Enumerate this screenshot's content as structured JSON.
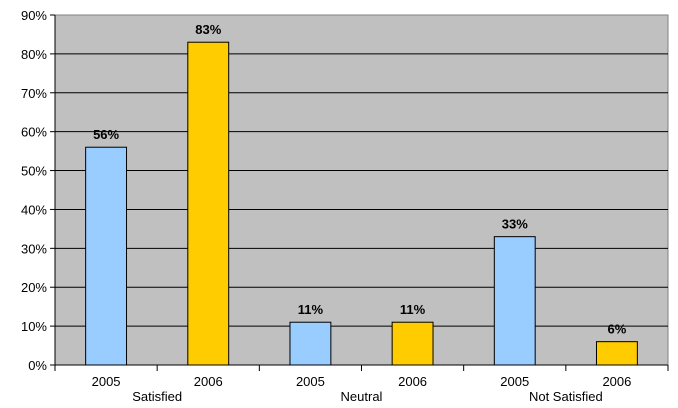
{
  "chart_data": {
    "type": "bar",
    "title": "",
    "xlabel": "",
    "ylabel": "",
    "ylim": [
      0,
      90
    ],
    "yticks": [
      "0%",
      "10%",
      "20%",
      "30%",
      "40%",
      "50%",
      "60%",
      "70%",
      "80%",
      "90%"
    ],
    "grid": true,
    "groups": [
      "Satisfied",
      "Neutral",
      "Not Satisfied"
    ],
    "sub_categories": [
      "2005",
      "2006"
    ],
    "series": [
      {
        "values": [
          56,
          11,
          33
        ],
        "labels": [
          "56%",
          "11%",
          "33%"
        ],
        "color": "#99CCFF"
      },
      {
        "values": [
          83,
          11,
          6
        ],
        "labels": [
          "83%",
          "11%",
          "6%"
        ],
        "color": "#FFCC00"
      }
    ],
    "plot_background": "#C0C0C0"
  }
}
